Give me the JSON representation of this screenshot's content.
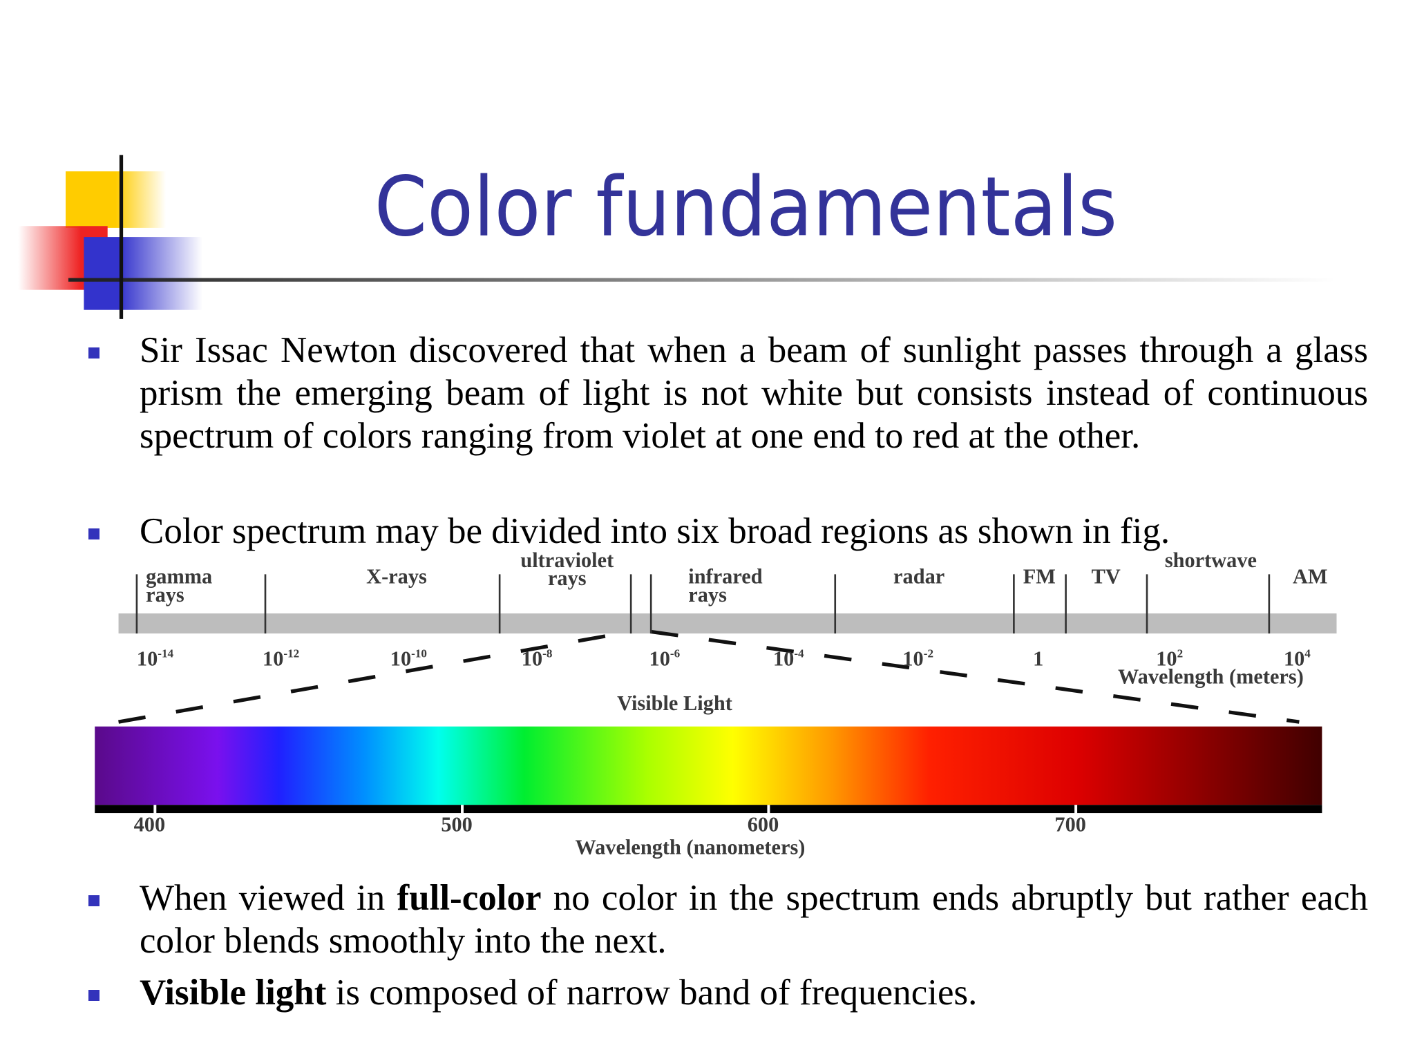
{
  "title": "Color fundamentals",
  "bullets": [
    {
      "parts": [
        {
          "text": "Sir Issac Newton discovered that when a beam of sunlight passes through a glass prism the emerging beam of light is not white but consists instead of continuous spectrum of colors ranging from violet at one end to red at the other."
        }
      ]
    },
    {
      "parts": [
        {
          "text": "Color spectrum may be divided into six broad regions as shown in fig."
        }
      ]
    },
    {
      "parts": [
        {
          "text": "When viewed in "
        },
        {
          "text": "full-color",
          "bold": true
        },
        {
          "text": " no color in the spectrum ends abruptly but rather each color blends smoothly into the next."
        }
      ]
    },
    {
      "parts": [
        {
          "text": "Visible light",
          "bold": true
        },
        {
          "text": " is composed of narrow band of frequencies."
        }
      ]
    }
  ],
  "figure": {
    "regions": [
      [
        "gamma",
        "rays"
      ],
      [
        "X-rays"
      ],
      [
        "ultraviolet",
        "rays"
      ],
      [
        "infrared",
        "rays"
      ],
      [
        "radar"
      ],
      [
        "FM"
      ],
      [
        "TV"
      ],
      [
        "shortwave"
      ],
      [
        "AM"
      ]
    ],
    "scale": [
      {
        "base": "10",
        "exp": "-14"
      },
      {
        "base": "10",
        "exp": "-12"
      },
      {
        "base": "10",
        "exp": "-10"
      },
      {
        "base": "10",
        "exp": "-8"
      },
      {
        "base": "10",
        "exp": "-6"
      },
      {
        "base": "10",
        "exp": "-4"
      },
      {
        "base": "10",
        "exp": "-2"
      },
      {
        "base": "1"
      },
      {
        "base": "10",
        "exp": "2"
      },
      {
        "base": "10",
        "exp": "4"
      }
    ],
    "scale_label": "Wavelength (meters)",
    "visible_label": "Visible Light",
    "nm_ticks": [
      400,
      500,
      600,
      700
    ],
    "nm_label": "Wavelength (nanometers)"
  }
}
